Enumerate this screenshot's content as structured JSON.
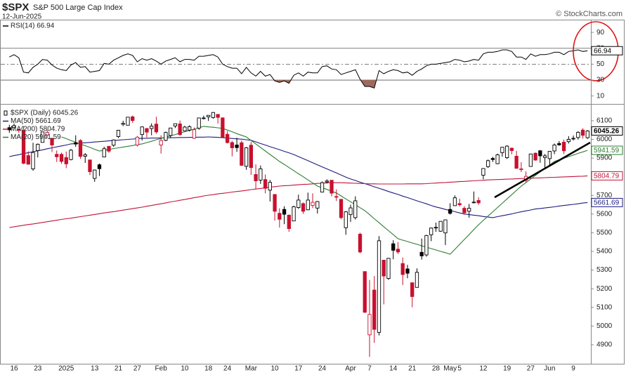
{
  "header": {
    "symbol": "$SPX",
    "name": "S&P 500 Large Cap Index",
    "date": "12-Jun-2025",
    "credit": "© StockCharts.com"
  },
  "chart_data": [
    {
      "type": "line",
      "ylim": [
        0,
        106
      ],
      "yticks": [
        10,
        30,
        50,
        70,
        90
      ],
      "levels": [
        70,
        50,
        30
      ],
      "oversold_fill": "#9e6a5e",
      "series": [
        {
          "name": "RSI(14) 66.94",
          "color": "#000000",
          "values": [
            59,
            62,
            58,
            40,
            39,
            46,
            50,
            56,
            55,
            49,
            45,
            43,
            42,
            49,
            52,
            46,
            47,
            40,
            41,
            42,
            51,
            50,
            55,
            58,
            61,
            63,
            61,
            53,
            57,
            55,
            57,
            54,
            50,
            54,
            56,
            58,
            53,
            56,
            56,
            55,
            60,
            60,
            61,
            62,
            59,
            50,
            47,
            45,
            45,
            38,
            46,
            39,
            35,
            41,
            35,
            37,
            29,
            27,
            29,
            26,
            36,
            39,
            35,
            40,
            39,
            39,
            47,
            48,
            44,
            43,
            37,
            39,
            41,
            43,
            31,
            22,
            22,
            20,
            42,
            38,
            41,
            43,
            42,
            39,
            40,
            36,
            41,
            44,
            48,
            50,
            50,
            51,
            52,
            53,
            56,
            55,
            53,
            54,
            56,
            55,
            63,
            65,
            65,
            66,
            68,
            68,
            66,
            59,
            59,
            56,
            63,
            60,
            62,
            62,
            63,
            65,
            65,
            62,
            66,
            67,
            68,
            66,
            66.94
          ]
        }
      ]
    },
    {
      "type": "candlestick",
      "name": "$SPX (Daily) 6045.26",
      "up_color": "#000000",
      "down_color": "#c8102e",
      "ylim": [
        4798,
        6190
      ],
      "yticks": [
        4900,
        5000,
        5100,
        5200,
        5300,
        5400,
        5500,
        5600,
        5700,
        5800,
        5900,
        6000,
        6100
      ],
      "categories": [
        null,
        "16",
        null,
        null,
        null,
        null,
        "23",
        null,
        null,
        null,
        null,
        null,
        "2025",
        null,
        null,
        null,
        null,
        null,
        "13",
        null,
        null,
        null,
        null,
        "21",
        null,
        null,
        null,
        "27",
        null,
        null,
        null,
        null,
        "Feb",
        null,
        null,
        null,
        null,
        "10",
        null,
        null,
        null,
        null,
        "18",
        null,
        null,
        null,
        "24",
        null,
        null,
        null,
        null,
        "Mar",
        null,
        null,
        null,
        null,
        "10",
        null,
        null,
        null,
        null,
        "17",
        null,
        null,
        null,
        null,
        "24",
        null,
        null,
        null,
        null,
        null,
        "Apr",
        null,
        null,
        null,
        "7",
        null,
        null,
        null,
        null,
        "14",
        null,
        null,
        null,
        "21",
        null,
        null,
        null,
        null,
        "28",
        null,
        null,
        "May",
        null,
        "5",
        null,
        null,
        null,
        null,
        "12",
        null,
        null,
        null,
        null,
        "19",
        null,
        null,
        null,
        null,
        "27",
        null,
        null,
        null,
        "Jun",
        null,
        null,
        null,
        null,
        "9",
        null,
        null,
        null
      ],
      "open": [
        6063,
        6063,
        6052,
        6048,
        5913,
        5842,
        5940,
        5984,
        6024,
        6006,
        5920,
        5920,
        5903,
        5892,
        5982,
        5994,
        5910,
        5890,
        5791,
        5864,
        5906,
        5963,
        5969,
        6015,
        6081,
        6076,
        6121,
        5970,
        6026,
        6058,
        6058,
        6082,
        5970,
        5995,
        6021,
        6072,
        6083,
        6046,
        6050,
        6006,
        6060,
        6115,
        6121,
        6117,
        6134,
        6115,
        6027,
        5983,
        5970,
        5982,
        5856,
        5969,
        5812,
        5782,
        5785,
        5728,
        5705,
        5604,
        5625,
        5594,
        5563,
        5635,
        5656,
        5623,
        5646,
        5632,
        5718,
        5772,
        5781,
        5694,
        5679,
        5527,
        5597,
        5581,
        5492,
        5292,
        4953,
        5193,
        4966,
        5353,
        5255,
        5441,
        5412,
        5335,
        5306,
        5232,
        5207,
        5395,
        5381,
        5489,
        5529,
        5508,
        5499,
        5625,
        5645,
        5656,
        5631,
        5615,
        5663,
        5673,
        5808,
        5854,
        5898,
        5870,
        5929,
        5902,
        5953,
        5910,
        5841,
        5781,
        5855,
        5926,
        5939,
        5903,
        5897,
        5938,
        5978,
        5985,
        5988,
        6005,
        6010,
        6050,
        6009
      ],
      "high": [
        6078,
        6085,
        6057,
        6070,
        5936,
        5982,
        5978,
        6040,
        6049,
        6007,
        5941,
        5929,
        5935,
        5949,
        6022,
        6001,
        5927,
        5890,
        5839,
        5871,
        5961,
        5965,
        6000,
        6051,
        6100,
        6119,
        6128,
        6018,
        6070,
        6062,
        6086,
        6121,
        6022,
        6042,
        6062,
        6084,
        6101,
        6073,
        6076,
        6064,
        6116,
        6127,
        6129,
        6147,
        6134,
        6119,
        6044,
        5992,
        6009,
        5994,
        5959,
        5986,
        5866,
        5860,
        5812,
        5783,
        5706,
        5631,
        5642,
        5598,
        5645,
        5704,
        5662,
        5715,
        5711,
        5670,
        5775,
        5786,
        5783,
        5732,
        5679,
        5616,
        5650,
        5695,
        5500,
        5292,
        5247,
        5268,
        5482,
        5353,
        5365,
        5460,
        5450,
        5367,
        5328,
        5232,
        5309,
        5469,
        5489,
        5528,
        5554,
        5562,
        5571,
        5658,
        5700,
        5683,
        5642,
        5654,
        5721,
        5690,
        5845,
        5892,
        5907,
        5924,
        5959,
        5969,
        5956,
        5939,
        5878,
        5829,
        5923,
        5930,
        5943,
        5922,
        5938,
        5978,
        5991,
        5999,
        6017,
        6021,
        6044,
        6060,
        6050
      ],
      "low": [
        6035,
        6059,
        6035,
        5867,
        5866,
        5832,
        5903,
        5983,
        6007,
        5932,
        5879,
        5869,
        5846,
        5888,
        5960,
        5896,
        5874,
        5809,
        5773,
        5804,
        5906,
        5928,
        5960,
        6007,
        6071,
        6075,
        6089,
        5962,
        5994,
        6010,
        6022,
        6030,
        5924,
        5990,
        6007,
        6061,
        6019,
        6045,
        6043,
        6003,
        6051,
        6107,
        6099,
        6111,
        6085,
        6009,
        5978,
        5909,
        5933,
        5858,
        5837,
        5810,
        5733,
        5762,
        5711,
        5667,
        5565,
        5528,
        5546,
        5505,
        5563,
        5628,
        5601,
        5620,
        5632,
        5603,
        5718,
        5764,
        5695,
        5670,
        5572,
        5489,
        5558,
        5571,
        5390,
        5070,
        4835,
        4910,
        4950,
        5116,
        5247,
        5358,
        5386,
        5220,
        5256,
        5101,
        5207,
        5356,
        5372,
        5455,
        5505,
        5505,
        5434,
        5597,
        5644,
        5640,
        5598,
        5580,
        5658,
        5650,
        5786,
        5847,
        5879,
        5867,
        5907,
        5895,
        5920,
        5843,
        5825,
        5768,
        5855,
        5886,
        5875,
        5843,
        5861,
        5921,
        5966,
        5921,
        5978,
        5994,
        5999,
        6005,
        6003
      ],
      "close": [
        6051,
        6074,
        6050,
        5872,
        5867,
        5930,
        5974,
        6040,
        6037,
        5970,
        5907,
        5882,
        5869,
        5942,
        5975,
        5909,
        5918,
        5827,
        5836,
        5843,
        5950,
        5937,
        5997,
        6049,
        6086,
        6119,
        6101,
        6012,
        6067,
        6039,
        6071,
        6040,
        5994,
        6037,
        6061,
        6084,
        6026,
        6066,
        6068,
        6052,
        6115,
        6115,
        6129,
        6144,
        6118,
        6013,
        5983,
        5955,
        5956,
        5861,
        5955,
        5849,
        5778,
        5842,
        5738,
        5770,
        5615,
        5572,
        5599,
        5522,
        5639,
        5675,
        5615,
        5675,
        5663,
        5667,
        5768,
        5777,
        5712,
        5693,
        5581,
        5612,
        5633,
        5671,
        5397,
        5074,
        5062,
        4982,
        5457,
        5268,
        5363,
        5406,
        5397,
        5276,
        5283,
        5158,
        5288,
        5376,
        5485,
        5525,
        5529,
        5561,
        5569,
        5604,
        5687,
        5650,
        5607,
        5631,
        5664,
        5660,
        5844,
        5886,
        5892,
        5917,
        5958,
        5964,
        5940,
        5845,
        5842,
        5802,
        5922,
        5889,
        5912,
        5912,
        5936,
        5970,
        5971,
        5939,
        6000,
        6006,
        6038,
        6022,
        6045.26
      ],
      "series": [
        {
          "name": "MA(50) 5661.69",
          "color": "#1c1c80",
          "values": [
            5908,
            5913,
            5918,
            5924,
            5929,
            5934,
            5939,
            5944,
            5950,
            5955,
            5960,
            5965,
            5970,
            5976,
            5978,
            5980,
            5982,
            5984,
            5986,
            5988,
            5990,
            5992,
            5994,
            5996,
            5998,
            6000,
            6002,
            6004,
            6006,
            6006,
            6007,
            6007,
            6008,
            6008,
            6009,
            6009,
            6010,
            6010,
            6011,
            6011,
            6012,
            6012,
            6013,
            6012,
            6011,
            6009,
            6007,
            6005,
            6003,
            6001,
            5998,
            5995,
            5987,
            5978,
            5970,
            5961,
            5953,
            5945,
            5936,
            5928,
            5919,
            5908,
            5897,
            5886,
            5875,
            5864,
            5853,
            5842,
            5831,
            5820,
            5809,
            5798,
            5788,
            5780,
            5771,
            5763,
            5755,
            5746,
            5738,
            5730,
            5721,
            5713,
            5705,
            5696,
            5688,
            5680,
            5671,
            5663,
            5655,
            5646,
            5638,
            5632,
            5625,
            5619,
            5613,
            5606,
            5600,
            5597,
            5594,
            5591,
            5587,
            5584,
            5581,
            5586,
            5591,
            5596,
            5601,
            5607,
            5612,
            5617,
            5622,
            5627,
            5630,
            5633,
            5636,
            5639,
            5643,
            5646,
            5649,
            5652,
            5655,
            5659,
            5661.69
          ]
        },
        {
          "name": "MA(200) 5804.79",
          "color": "#c0143c",
          "values": [
            5528,
            5532,
            5536,
            5540,
            5544,
            5547,
            5551,
            5555,
            5559,
            5563,
            5567,
            5571,
            5575,
            5578,
            5582,
            5586,
            5590,
            5594,
            5598,
            5602,
            5606,
            5610,
            5613,
            5617,
            5621,
            5625,
            5629,
            5633,
            5637,
            5642,
            5646,
            5651,
            5655,
            5660,
            5665,
            5669,
            5674,
            5678,
            5683,
            5688,
            5692,
            5697,
            5701,
            5704,
            5708,
            5711,
            5714,
            5718,
            5721,
            5724,
            5727,
            5731,
            5734,
            5737,
            5741,
            5744,
            5747,
            5750,
            5752,
            5753,
            5755,
            5757,
            5759,
            5760,
            5762,
            5764,
            5765,
            5767,
            5769,
            5768,
            5768,
            5767,
            5766,
            5765,
            5764,
            5763,
            5762,
            5762,
            5761,
            5761,
            5761,
            5761,
            5761,
            5761,
            5762,
            5762,
            5762,
            5762,
            5763,
            5765,
            5766,
            5768,
            5769,
            5771,
            5772,
            5774,
            5775,
            5777,
            5778,
            5780,
            5781,
            5783,
            5784,
            5785,
            5786,
            5787,
            5788,
            5789,
            5790,
            5791,
            5792,
            5793,
            5794,
            5795,
            5796,
            5797,
            5798,
            5799,
            5800,
            5801,
            5802,
            5803,
            5804.79
          ]
        },
        {
          "name": "MA(20) 5941.59",
          "color": "#2e7d32",
          "values": [
            null,
            null,
            null,
            null,
            null,
            null,
            null,
            null,
            null,
            null,
            null,
            6013,
            6004,
            5994,
            5985,
            5975,
            5966,
            5957,
            5947,
            5938,
            5942,
            5946,
            5951,
            5955,
            5959,
            5963,
            5967,
            5972,
            5976,
            5983,
            5990,
            5998,
            6005,
            6012,
            6019,
            6026,
            6034,
            6041,
            6048,
            6055,
            6063,
            6070,
            6067,
            6065,
            6062,
            6059,
            6050,
            6041,
            6031,
            6022,
            6013,
            5994,
            5976,
            5957,
            5938,
            5919,
            5901,
            5882,
            5866,
            5849,
            5833,
            5816,
            5800,
            5783,
            5767,
            5750,
            5741,
            5732,
            5722,
            5713,
            5697,
            5681,
            5666,
            5650,
            5634,
            5618,
            5597,
            5575,
            5554,
            5532,
            5511,
            5490,
            5468,
            5460,
            5453,
            5445,
            5438,
            5430,
            5423,
            5415,
            5408,
            5400,
            5393,
            5385,
            5411,
            5438,
            5464,
            5490,
            5517,
            5543,
            5566,
            5589,
            5612,
            5635,
            5658,
            5681,
            5704,
            5727,
            5750,
            5769,
            5788,
            5807,
            5826,
            5844,
            5863,
            5882,
            5891,
            5899,
            5908,
            5916,
            5925,
            5933,
            5941.59
          ]
        }
      ]
    }
  ]
}
